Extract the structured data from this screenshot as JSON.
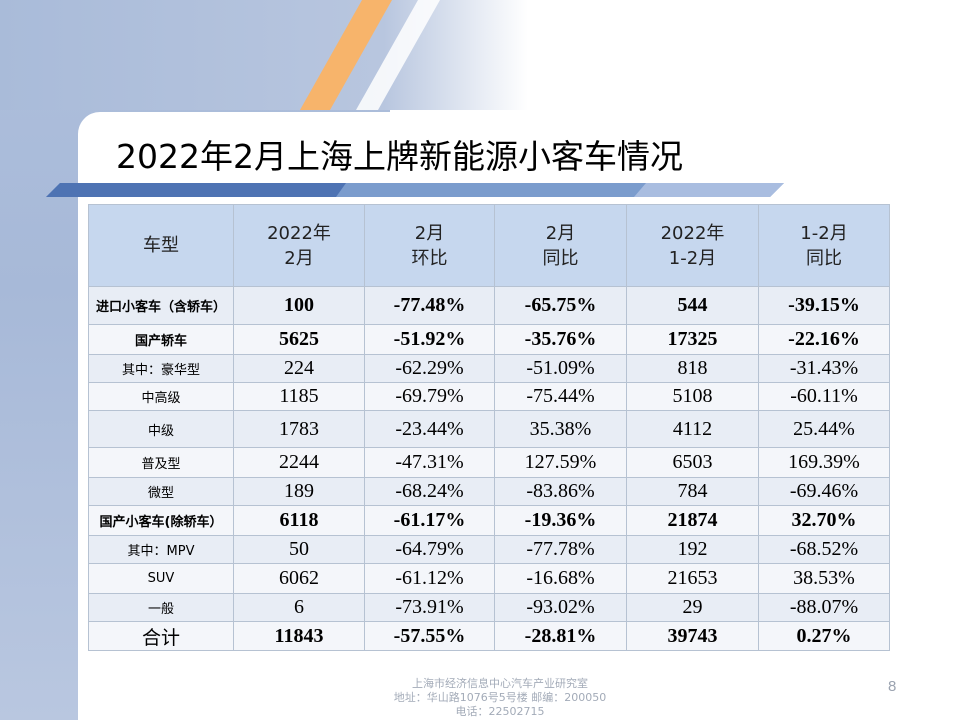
{
  "title": "2022年2月上海上牌新能源小客车情况",
  "table": {
    "headers": [
      [
        "车型"
      ],
      [
        "2022年",
        "2月"
      ],
      [
        "2月",
        "环比"
      ],
      [
        "2月",
        "同比"
      ],
      [
        "2022年",
        "1-2月"
      ],
      [
        "1-2月",
        "同比"
      ]
    ],
    "rows": [
      {
        "label": "进口小客车（含轿车）",
        "values": [
          "100",
          "-77.48%",
          "-65.75%",
          "544",
          "-39.15%"
        ]
      },
      {
        "label": "国产轿车",
        "values": [
          "5625",
          "-51.92%",
          "-35.76%",
          "17325",
          "-22.16%"
        ]
      },
      {
        "label": "其中：豪华型",
        "values": [
          "224",
          "-62.29%",
          "-51.09%",
          "818",
          "-31.43%"
        ]
      },
      {
        "label": "中高级",
        "values": [
          "1185",
          "-69.79%",
          "-75.44%",
          "5108",
          "-60.11%"
        ]
      },
      {
        "label": "中级",
        "values": [
          "1783",
          "-23.44%",
          "35.38%",
          "4112",
          "25.44%"
        ]
      },
      {
        "label": "普及型",
        "values": [
          "2244",
          "-47.31%",
          "127.59%",
          "6503",
          "169.39%"
        ]
      },
      {
        "label": "微型",
        "values": [
          "189",
          "-68.24%",
          "-83.86%",
          "784",
          "-69.46%"
        ]
      },
      {
        "label": "国产小客车(除轿车）",
        "values": [
          "6118",
          "-61.17%",
          "-19.36%",
          "21874",
          "32.70%"
        ]
      },
      {
        "label": "其中：MPV",
        "values": [
          "50",
          "-64.79%",
          "-77.78%",
          "192",
          "-68.52%"
        ]
      },
      {
        "label": "SUV",
        "values": [
          "6062",
          "-61.12%",
          "-16.68%",
          "21653",
          "38.53%"
        ]
      },
      {
        "label": "一般",
        "values": [
          "6",
          "-73.91%",
          "-93.02%",
          "29",
          "-88.07%"
        ]
      },
      {
        "label": "合计",
        "values": [
          "11843",
          "-57.55%",
          "-28.81%",
          "39743",
          "0.27%"
        ]
      }
    ]
  },
  "footer": {
    "line1": "上海市经济信息中心汽车产业研究室",
    "line2": "地址：华山路1076号5号楼   邮编：200050",
    "line3": "电话：22502715"
  },
  "page_number": "8",
  "colors": {
    "header_bg": "#c6d7ee",
    "accent_orange": "#f4a460",
    "accent_blue": "#5b7fbf"
  }
}
